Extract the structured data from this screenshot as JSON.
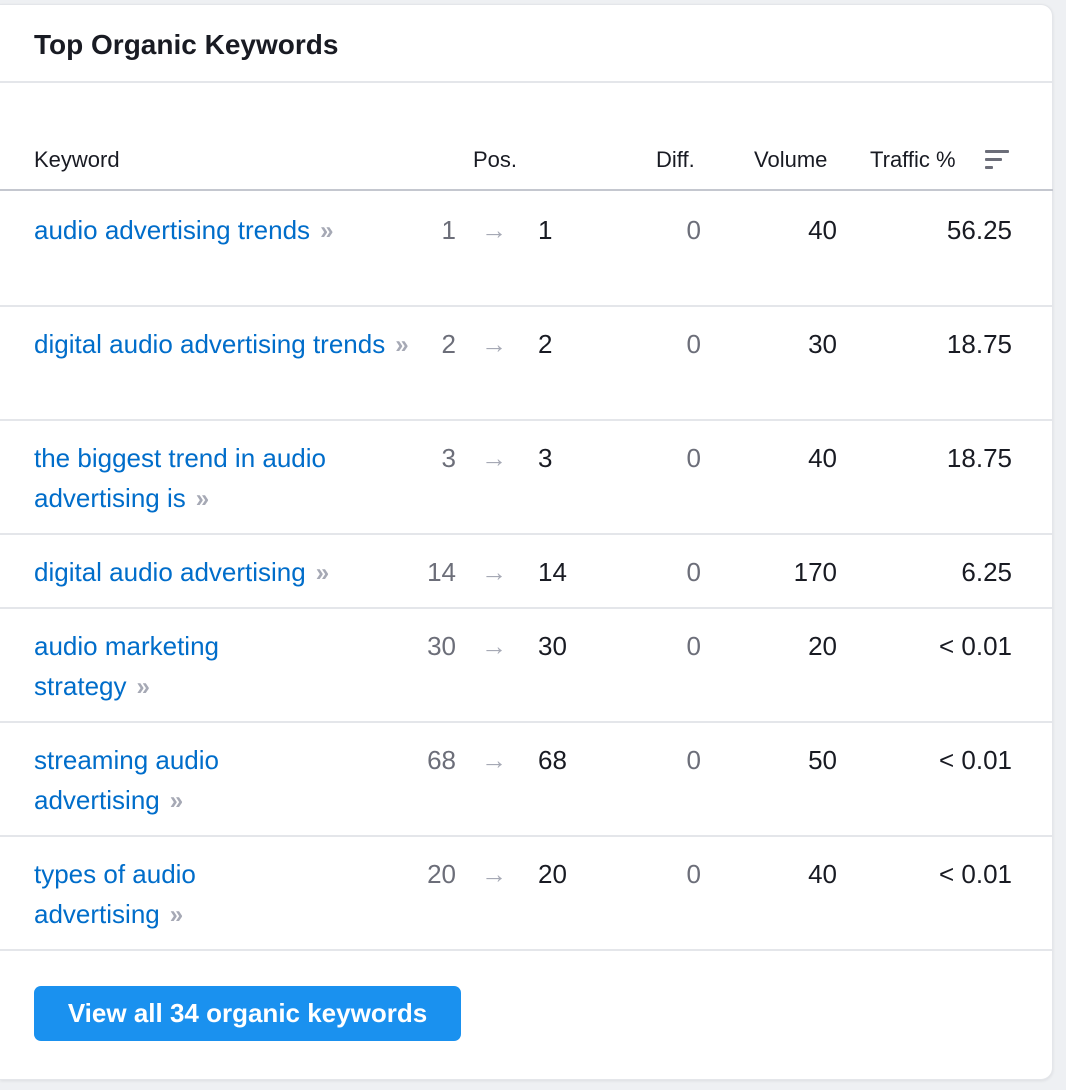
{
  "widget": {
    "title": "Top Organic Keywords",
    "columns": {
      "keyword": "Keyword",
      "pos": "Pos.",
      "diff": "Diff.",
      "volume": "Volume",
      "traffic": "Traffic %"
    },
    "sort_icon": "sort-lines-icon",
    "arrow_glyph": "→",
    "chevron_glyph": "»",
    "rows": [
      {
        "keyword": "audio advertising trends",
        "prev_pos": "1",
        "pos": "1",
        "diff": "0",
        "volume": "40",
        "traffic": "56.25"
      },
      {
        "keyword": "digital audio advertising trends",
        "prev_pos": "2",
        "pos": "2",
        "diff": "0",
        "volume": "30",
        "traffic": "18.75"
      },
      {
        "keyword": "the biggest trend in audio advertising is",
        "prev_pos": "3",
        "pos": "3",
        "diff": "0",
        "volume": "40",
        "traffic": "18.75"
      },
      {
        "keyword": "digital audio advertising",
        "prev_pos": "14",
        "pos": "14",
        "diff": "0",
        "volume": "170",
        "traffic": "6.25"
      },
      {
        "keyword": "audio marketing strategy",
        "prev_pos": "30",
        "pos": "30",
        "diff": "0",
        "volume": "20",
        "traffic": "< 0.01"
      },
      {
        "keyword": "streaming audio advertising",
        "prev_pos": "68",
        "pos": "68",
        "diff": "0",
        "volume": "50",
        "traffic": "< 0.01"
      },
      {
        "keyword": "types of audio advertising",
        "prev_pos": "20",
        "pos": "20",
        "diff": "0",
        "volume": "40",
        "traffic": "< 0.01"
      }
    ],
    "view_all_label": "View all 34 organic keywords"
  },
  "colors": {
    "link": "#006dca",
    "button": "#1a91ef",
    "text": "#191b23",
    "muted": "#6c6e79"
  }
}
